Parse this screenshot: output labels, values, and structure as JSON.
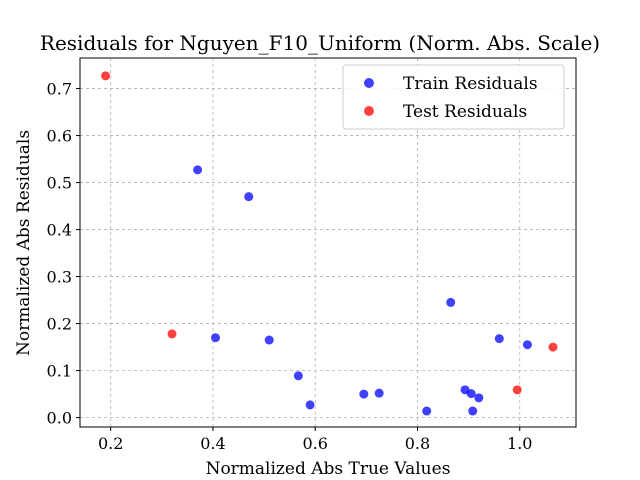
{
  "chart_data": {
    "type": "scatter",
    "title": "Residuals for Nguyen_F10_Uniform (Norm. Abs. Scale)",
    "xlabel": "Normalized Abs True Values",
    "ylabel": "Normalized Abs Residuals",
    "xlim": [
      0.14,
      1.11
    ],
    "ylim": [
      -0.02,
      0.765
    ],
    "xticks": [
      0.2,
      0.4,
      0.6,
      0.8,
      1.0
    ],
    "xtick_labels": [
      "0.2",
      "0.4",
      "0.6",
      "0.8",
      "1.0"
    ],
    "yticks": [
      0.0,
      0.1,
      0.2,
      0.3,
      0.4,
      0.5,
      0.6,
      0.7
    ],
    "ytick_labels": [
      "0.0",
      "0.1",
      "0.2",
      "0.3",
      "0.4",
      "0.5",
      "0.6",
      "0.7"
    ],
    "grid": true,
    "legend_position": "top-right",
    "series": [
      {
        "name": "Train Residuals",
        "color": "#0000ff",
        "points": [
          [
            0.37,
            0.527
          ],
          [
            0.47,
            0.47
          ],
          [
            0.405,
            0.17
          ],
          [
            0.51,
            0.165
          ],
          [
            0.567,
            0.089
          ],
          [
            0.59,
            0.027
          ],
          [
            0.695,
            0.05
          ],
          [
            0.725,
            0.052
          ],
          [
            0.818,
            0.014
          ],
          [
            0.865,
            0.245
          ],
          [
            0.893,
            0.059
          ],
          [
            0.905,
            0.051
          ],
          [
            0.908,
            0.014
          ],
          [
            0.92,
            0.042
          ],
          [
            0.96,
            0.168
          ],
          [
            1.015,
            0.155
          ]
        ]
      },
      {
        "name": "Test Residuals",
        "color": "#ff0000",
        "points": [
          [
            0.19,
            0.727
          ],
          [
            0.32,
            0.178
          ],
          [
            0.995,
            0.059
          ],
          [
            1.065,
            0.15
          ]
        ]
      }
    ]
  }
}
